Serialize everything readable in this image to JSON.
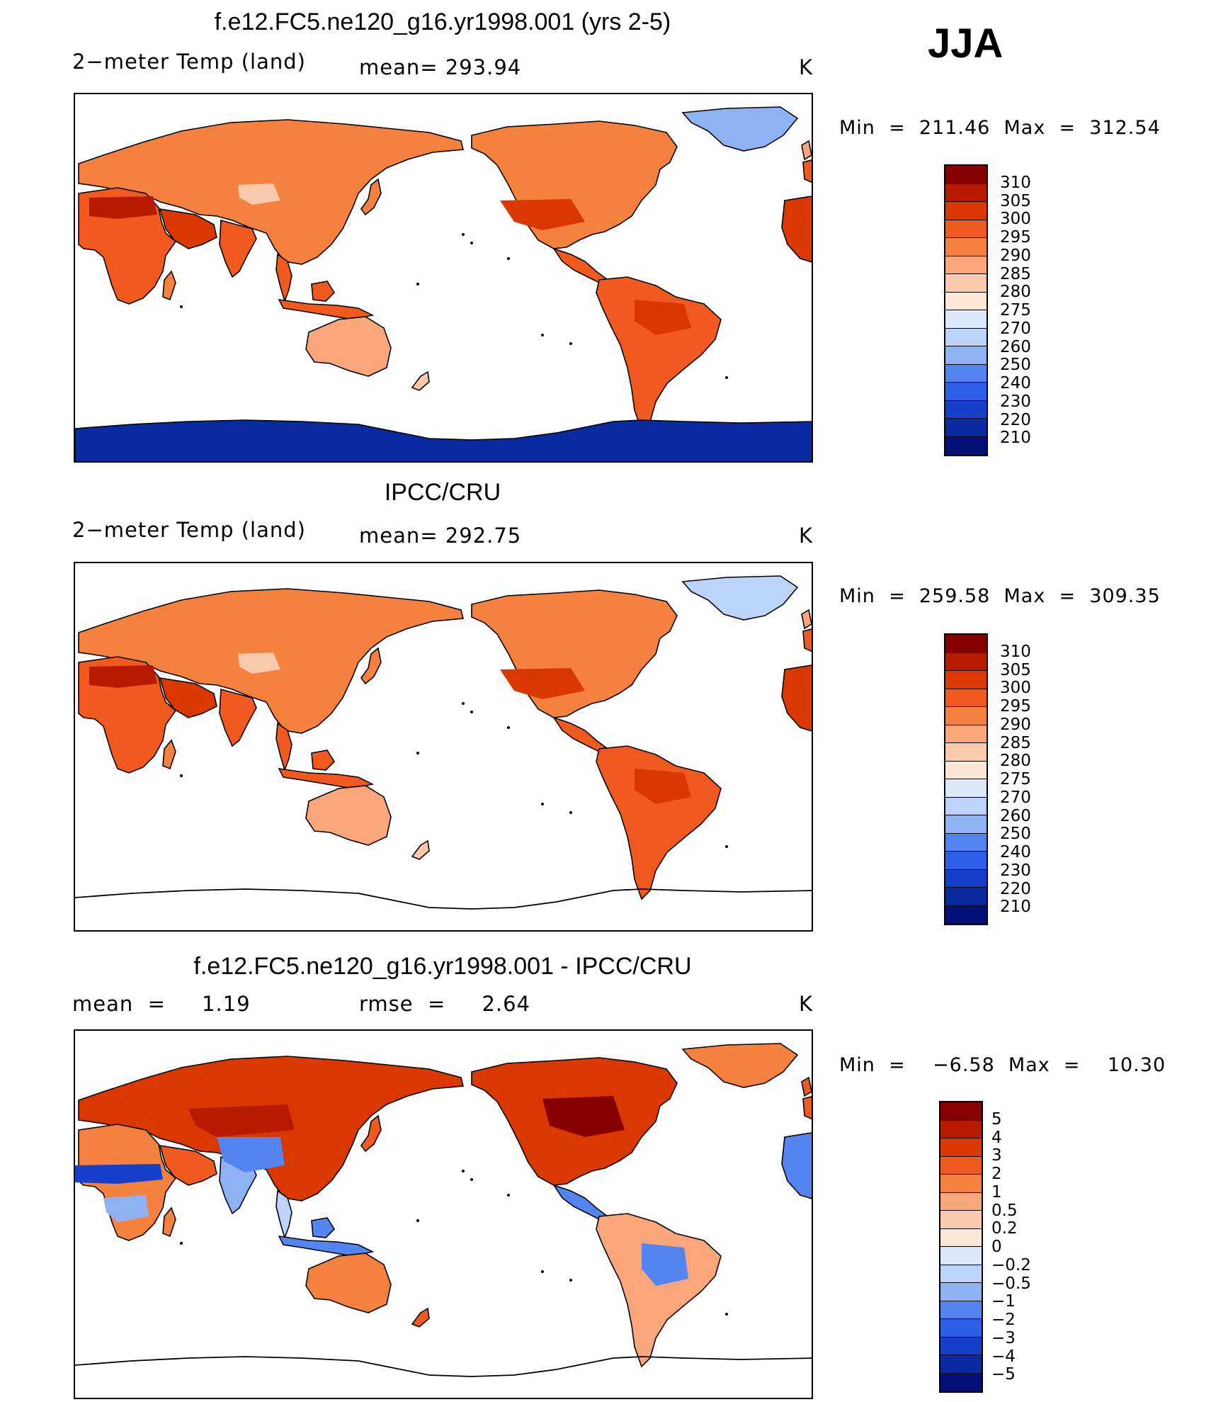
{
  "season": "JJA",
  "panels": [
    {
      "title": "f.e12.FC5.ne120_g16.yr1998.001 (yrs 2-5)",
      "left_text": "2−meter Temp (land)",
      "mid_text": "mean= 293.94",
      "unit": "K",
      "minmax": "Min  =  211.46  Max  =  312.54",
      "colorbar": {
        "labels": [
          "310",
          "305",
          "300",
          "295",
          "290",
          "285",
          "280",
          "275",
          "270",
          "260",
          "250",
          "240",
          "230",
          "220",
          "210"
        ],
        "colors": [
          "#870000",
          "#b81a00",
          "#d93800",
          "#f05a1f",
          "#f5813f",
          "#f8a67a",
          "#fbc9ab",
          "#fde7d6",
          "#dbe9fb",
          "#bcd3fa",
          "#8fb2f5",
          "#5484f0",
          "#2c5ee8",
          "#163fcc",
          "#0a2aa0",
          "#040f7a"
        ]
      },
      "antarctic_fill": true,
      "scheme": "model"
    },
    {
      "title": "IPCC/CRU",
      "left_text": "2−meter Temp (land)",
      "mid_text": "mean= 292.75",
      "unit": "K",
      "minmax": "Min  =  259.58  Max  =  309.35",
      "colorbar": {
        "labels": [
          "310",
          "305",
          "300",
          "295",
          "290",
          "285",
          "280",
          "275",
          "270",
          "260",
          "250",
          "240",
          "230",
          "220",
          "210"
        ],
        "colors": [
          "#870000",
          "#b81a00",
          "#d93800",
          "#f05a1f",
          "#f5813f",
          "#f8a67a",
          "#fbc9ab",
          "#fde7d6",
          "#dbe9fb",
          "#bcd3fa",
          "#8fb2f5",
          "#5484f0",
          "#2c5ee8",
          "#163fcc",
          "#0a2aa0",
          "#040f7a"
        ]
      },
      "antarctic_fill": false,
      "scheme": "obs"
    },
    {
      "title": "f.e12.FC5.ne120_g16.yr1998.001 - IPCC/CRU",
      "left_text": "mean  =     1.19",
      "mid_text": "rmse  =     2.64",
      "unit": "K",
      "minmax": "Min  =    −6.58  Max  =    10.30",
      "colorbar": {
        "labels": [
          "5",
          "4",
          "3",
          "2",
          "1",
          "0.5",
          "0.2",
          "0",
          "−0.2",
          "−0.5",
          "−1",
          "−2",
          "−3",
          "−4",
          "−5"
        ],
        "colors": [
          "#870000",
          "#b81a00",
          "#d93800",
          "#f05a1f",
          "#f5813f",
          "#f8a67a",
          "#fbc9ab",
          "#fde7d6",
          "#dbe9fb",
          "#bcd3fa",
          "#8fb2f5",
          "#5484f0",
          "#2c5ee8",
          "#163fcc",
          "#0a2aa0",
          "#040f7a"
        ]
      },
      "antarctic_fill": false,
      "scheme": "diff"
    }
  ]
}
